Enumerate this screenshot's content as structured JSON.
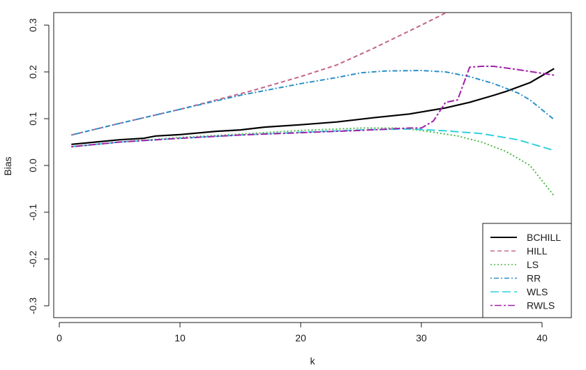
{
  "chart_data": {
    "type": "line",
    "title": "",
    "xlabel": "k",
    "ylabel": "Bias",
    "xlim": [
      0,
      42
    ],
    "ylim": [
      -0.32,
      0.32
    ],
    "x_ticks": [
      0,
      10,
      20,
      30,
      40
    ],
    "y_ticks": [
      -0.3,
      -0.2,
      -0.1,
      0.0,
      0.1,
      0.2,
      0.3
    ],
    "x_tick_labels": [
      "0",
      "10",
      "20",
      "30",
      "40"
    ],
    "y_tick_labels": [
      "-0.3",
      "-0.2",
      "-0.1",
      "0.0",
      "0.1",
      "0.2",
      "0.3"
    ],
    "grid": false,
    "legend_position": "bottom-right",
    "series": [
      {
        "name": "BCHILL",
        "color": "#000000",
        "dash": "solid",
        "x": [
          1,
          3,
          5,
          7,
          8,
          10,
          13,
          15,
          17,
          20,
          23,
          26,
          29,
          32,
          34,
          36,
          37,
          39,
          41
        ],
        "y": [
          0.045,
          0.05,
          0.055,
          0.058,
          0.063,
          0.066,
          0.073,
          0.076,
          0.082,
          0.087,
          0.093,
          0.102,
          0.11,
          0.123,
          0.135,
          0.15,
          0.158,
          0.177,
          0.207
        ]
      },
      {
        "name": "HILL",
        "color": "#c2648a",
        "dash": "dashed",
        "x": [
          1,
          5,
          8,
          10,
          13,
          16,
          20,
          23,
          26,
          28,
          30,
          31,
          32
        ],
        "y": [
          0.065,
          0.09,
          0.108,
          0.12,
          0.14,
          0.16,
          0.19,
          0.215,
          0.25,
          0.275,
          0.3,
          0.313,
          0.326
        ]
      },
      {
        "name": "LS",
        "color": "#4db848",
        "dash": "dotted",
        "x": [
          1,
          5,
          10,
          15,
          20,
          25,
          28,
          30,
          33,
          35,
          37,
          39,
          41
        ],
        "y": [
          0.04,
          0.05,
          0.06,
          0.067,
          0.075,
          0.08,
          0.08,
          0.075,
          0.063,
          0.05,
          0.03,
          0.0,
          -0.065
        ]
      },
      {
        "name": "RR",
        "color": "#2a8fc7",
        "dash": "dotdash",
        "x": [
          1,
          5,
          10,
          15,
          20,
          23,
          25,
          27,
          30,
          32,
          34,
          36,
          38,
          39,
          41
        ],
        "y": [
          0.065,
          0.09,
          0.12,
          0.15,
          0.175,
          0.188,
          0.198,
          0.202,
          0.203,
          0.2,
          0.19,
          0.175,
          0.155,
          0.14,
          0.098
        ]
      },
      {
        "name": "WLS",
        "color": "#2ed1dc",
        "dash": "longdash",
        "x": [
          1,
          5,
          10,
          15,
          20,
          25,
          29,
          32,
          35,
          38,
          41
        ],
        "y": [
          0.04,
          0.05,
          0.058,
          0.065,
          0.071,
          0.076,
          0.078,
          0.074,
          0.068,
          0.055,
          0.032
        ]
      },
      {
        "name": "RWLS",
        "color": "#a020a8",
        "dash": "twodash",
        "x": [
          1,
          5,
          10,
          15,
          20,
          25,
          29,
          30,
          31,
          32,
          33,
          34,
          35,
          36,
          38,
          41
        ],
        "y": [
          0.04,
          0.05,
          0.058,
          0.065,
          0.07,
          0.075,
          0.08,
          0.08,
          0.095,
          0.135,
          0.14,
          0.21,
          0.212,
          0.212,
          0.205,
          0.193
        ]
      }
    ]
  }
}
